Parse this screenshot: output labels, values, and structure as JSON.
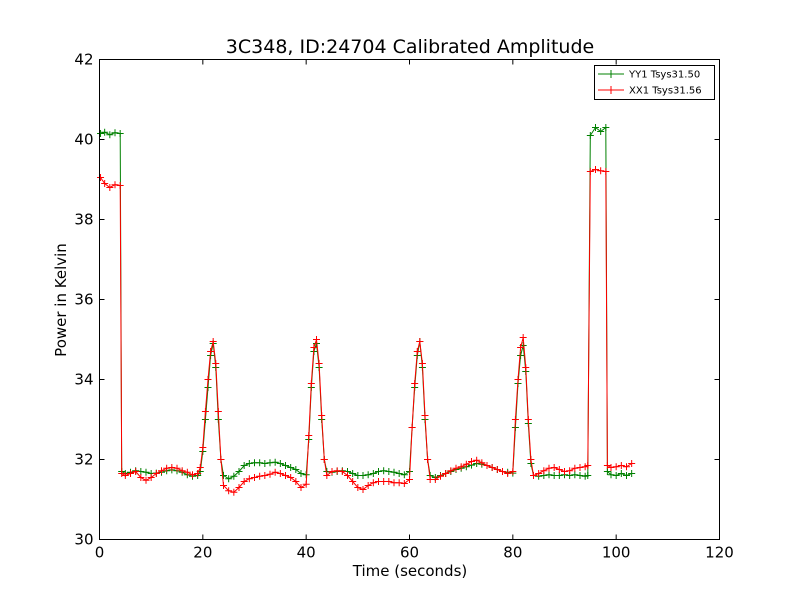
{
  "chart_data": {
    "type": "line",
    "title": "3C348, ID:24704 Calibrated Amplitude",
    "xlabel": "Time (seconds)",
    "ylabel": "Power in Kelvin",
    "xlim": [
      0,
      120
    ],
    "ylim": [
      30,
      42
    ],
    "xticks": [
      0,
      20,
      40,
      60,
      80,
      100,
      120
    ],
    "yticks": [
      30,
      32,
      34,
      36,
      38,
      40,
      42
    ],
    "grid": false,
    "legend_position": "top-right",
    "marker": "plus",
    "series": [
      {
        "name": "YY1 Tsys31.50",
        "color": "#008000",
        "points": [
          [
            0.2,
            40.15
          ],
          [
            1,
            40.18
          ],
          [
            2,
            40.12
          ],
          [
            3,
            40.17
          ],
          [
            4,
            40.15
          ],
          [
            4.3,
            31.7
          ],
          [
            5,
            31.65
          ],
          [
            6,
            31.68
          ],
          [
            7,
            31.72
          ],
          [
            8,
            31.7
          ],
          [
            9,
            31.68
          ],
          [
            10,
            31.65
          ],
          [
            11,
            31.66
          ],
          [
            12,
            31.68
          ],
          [
            13,
            31.72
          ],
          [
            14,
            31.74
          ],
          [
            15,
            31.72
          ],
          [
            16,
            31.68
          ],
          [
            17,
            31.62
          ],
          [
            18,
            31.58
          ],
          [
            19,
            31.6
          ],
          [
            19.5,
            31.7
          ],
          [
            20,
            32.2
          ],
          [
            20.5,
            33.0
          ],
          [
            21,
            33.8
          ],
          [
            21.5,
            34.6
          ],
          [
            22,
            34.9
          ],
          [
            22.5,
            34.3
          ],
          [
            23,
            33.0
          ],
          [
            23.5,
            32.0
          ],
          [
            24,
            31.6
          ],
          [
            25,
            31.52
          ],
          [
            26,
            31.58
          ],
          [
            27,
            31.7
          ],
          [
            28,
            31.85
          ],
          [
            29,
            31.9
          ],
          [
            30,
            31.92
          ],
          [
            31,
            31.92
          ],
          [
            32,
            31.9
          ],
          [
            33,
            31.92
          ],
          [
            34,
            31.93
          ],
          [
            35,
            31.9
          ],
          [
            36,
            31.85
          ],
          [
            37,
            31.8
          ],
          [
            38,
            31.75
          ],
          [
            39,
            31.65
          ],
          [
            40,
            31.62
          ],
          [
            40.5,
            32.5
          ],
          [
            41,
            33.8
          ],
          [
            41.5,
            34.7
          ],
          [
            42,
            34.9
          ],
          [
            42.5,
            34.3
          ],
          [
            43,
            33.0
          ],
          [
            43.5,
            32.0
          ],
          [
            44,
            31.7
          ],
          [
            45,
            31.68
          ],
          [
            46,
            31.7
          ],
          [
            47,
            31.72
          ],
          [
            48,
            31.7
          ],
          [
            49,
            31.65
          ],
          [
            50,
            31.6
          ],
          [
            51,
            31.6
          ],
          [
            52,
            31.62
          ],
          [
            53,
            31.65
          ],
          [
            54,
            31.7
          ],
          [
            55,
            31.72
          ],
          [
            56,
            31.7
          ],
          [
            57,
            31.68
          ],
          [
            58,
            31.65
          ],
          [
            59,
            31.62
          ],
          [
            60,
            31.7
          ],
          [
            60.5,
            32.8
          ],
          [
            61,
            33.8
          ],
          [
            61.5,
            34.6
          ],
          [
            62,
            34.95
          ],
          [
            62.5,
            34.3
          ],
          [
            63,
            33.0
          ],
          [
            63.5,
            32.0
          ],
          [
            64,
            31.6
          ],
          [
            65,
            31.55
          ],
          [
            66,
            31.6
          ],
          [
            67,
            31.65
          ],
          [
            68,
            31.7
          ],
          [
            69,
            31.75
          ],
          [
            70,
            31.78
          ],
          [
            71,
            31.82
          ],
          [
            72,
            31.86
          ],
          [
            73,
            31.9
          ],
          [
            74,
            31.88
          ],
          [
            75,
            31.85
          ],
          [
            76,
            31.8
          ],
          [
            77,
            31.75
          ],
          [
            78,
            31.7
          ],
          [
            79,
            31.68
          ],
          [
            80,
            31.66
          ],
          [
            80.5,
            32.8
          ],
          [
            81,
            33.9
          ],
          [
            81.5,
            34.6
          ],
          [
            82,
            34.85
          ],
          [
            82.5,
            34.2
          ],
          [
            83,
            32.9
          ],
          [
            83.5,
            31.9
          ],
          [
            84,
            31.6
          ],
          [
            85,
            31.58
          ],
          [
            86,
            31.6
          ],
          [
            87,
            31.62
          ],
          [
            88,
            31.6
          ],
          [
            89,
            31.6
          ],
          [
            90,
            31.62
          ],
          [
            91,
            31.6
          ],
          [
            92,
            31.62
          ],
          [
            93,
            31.6
          ],
          [
            94,
            31.58
          ],
          [
            94.5,
            31.6
          ],
          [
            95,
            40.1
          ],
          [
            96,
            40.3
          ],
          [
            97,
            40.2
          ],
          [
            98,
            40.3
          ],
          [
            98.3,
            31.7
          ],
          [
            99,
            31.62
          ],
          [
            100,
            31.6
          ],
          [
            101,
            31.65
          ],
          [
            102,
            31.6
          ],
          [
            103,
            31.65
          ]
        ]
      },
      {
        "name": "XX1 Tsys31.56",
        "color": "#ff0000",
        "points": [
          [
            0.2,
            39.05
          ],
          [
            1,
            38.9
          ],
          [
            2,
            38.8
          ],
          [
            3,
            38.87
          ],
          [
            4,
            38.85
          ],
          [
            4.3,
            31.65
          ],
          [
            5,
            31.6
          ],
          [
            6,
            31.65
          ],
          [
            7,
            31.7
          ],
          [
            8,
            31.55
          ],
          [
            9,
            31.48
          ],
          [
            10,
            31.55
          ],
          [
            11,
            31.65
          ],
          [
            12,
            31.72
          ],
          [
            13,
            31.78
          ],
          [
            14,
            31.8
          ],
          [
            15,
            31.78
          ],
          [
            16,
            31.72
          ],
          [
            17,
            31.68
          ],
          [
            18,
            31.62
          ],
          [
            19,
            31.65
          ],
          [
            19.5,
            31.8
          ],
          [
            20,
            32.3
          ],
          [
            20.5,
            33.2
          ],
          [
            21,
            34.0
          ],
          [
            21.5,
            34.7
          ],
          [
            22,
            34.95
          ],
          [
            22.5,
            34.4
          ],
          [
            23,
            33.2
          ],
          [
            23.5,
            32.0
          ],
          [
            24,
            31.35
          ],
          [
            25,
            31.22
          ],
          [
            26,
            31.18
          ],
          [
            27,
            31.3
          ],
          [
            28,
            31.45
          ],
          [
            29,
            31.52
          ],
          [
            30,
            31.55
          ],
          [
            31,
            31.58
          ],
          [
            32,
            31.6
          ],
          [
            33,
            31.63
          ],
          [
            34,
            31.68
          ],
          [
            35,
            31.65
          ],
          [
            36,
            31.6
          ],
          [
            37,
            31.55
          ],
          [
            38,
            31.45
          ],
          [
            39,
            31.3
          ],
          [
            40,
            31.38
          ],
          [
            40.5,
            32.6
          ],
          [
            41,
            33.9
          ],
          [
            41.5,
            34.8
          ],
          [
            42,
            35.0
          ],
          [
            42.5,
            34.4
          ],
          [
            43,
            33.1
          ],
          [
            43.5,
            32.0
          ],
          [
            44,
            31.6
          ],
          [
            45,
            31.7
          ],
          [
            46,
            31.72
          ],
          [
            47,
            31.7
          ],
          [
            48,
            31.6
          ],
          [
            49,
            31.45
          ],
          [
            50,
            31.3
          ],
          [
            51,
            31.25
          ],
          [
            52,
            31.35
          ],
          [
            53,
            31.42
          ],
          [
            54,
            31.45
          ],
          [
            55,
            31.45
          ],
          [
            56,
            31.45
          ],
          [
            57,
            31.42
          ],
          [
            58,
            31.42
          ],
          [
            59,
            31.4
          ],
          [
            60,
            31.5
          ],
          [
            60.5,
            32.8
          ],
          [
            61,
            33.9
          ],
          [
            61.5,
            34.7
          ],
          [
            62,
            34.95
          ],
          [
            62.5,
            34.4
          ],
          [
            63,
            33.1
          ],
          [
            63.5,
            32.0
          ],
          [
            64,
            31.5
          ],
          [
            65,
            31.5
          ],
          [
            66,
            31.58
          ],
          [
            67,
            31.65
          ],
          [
            68,
            31.72
          ],
          [
            69,
            31.78
          ],
          [
            70,
            31.82
          ],
          [
            71,
            31.88
          ],
          [
            72,
            31.95
          ],
          [
            73,
            31.98
          ],
          [
            74,
            31.92
          ],
          [
            75,
            31.85
          ],
          [
            76,
            31.8
          ],
          [
            77,
            31.75
          ],
          [
            78,
            31.7
          ],
          [
            79,
            31.65
          ],
          [
            80,
            31.7
          ],
          [
            80.5,
            33.0
          ],
          [
            81,
            34.0
          ],
          [
            81.5,
            34.8
          ],
          [
            82,
            35.05
          ],
          [
            82.5,
            34.3
          ],
          [
            83,
            33.0
          ],
          [
            83.5,
            32.0
          ],
          [
            84,
            31.6
          ],
          [
            85,
            31.65
          ],
          [
            86,
            31.72
          ],
          [
            87,
            31.78
          ],
          [
            88,
            31.8
          ],
          [
            89,
            31.75
          ],
          [
            90,
            31.7
          ],
          [
            91,
            31.72
          ],
          [
            92,
            31.78
          ],
          [
            93,
            31.8
          ],
          [
            94,
            31.82
          ],
          [
            94.5,
            31.85
          ],
          [
            95,
            39.2
          ],
          [
            96,
            39.25
          ],
          [
            97,
            39.22
          ],
          [
            98,
            39.2
          ],
          [
            98.3,
            31.85
          ],
          [
            99,
            31.8
          ],
          [
            100,
            31.82
          ],
          [
            101,
            31.85
          ],
          [
            102,
            31.82
          ],
          [
            103,
            31.9
          ]
        ]
      }
    ]
  }
}
